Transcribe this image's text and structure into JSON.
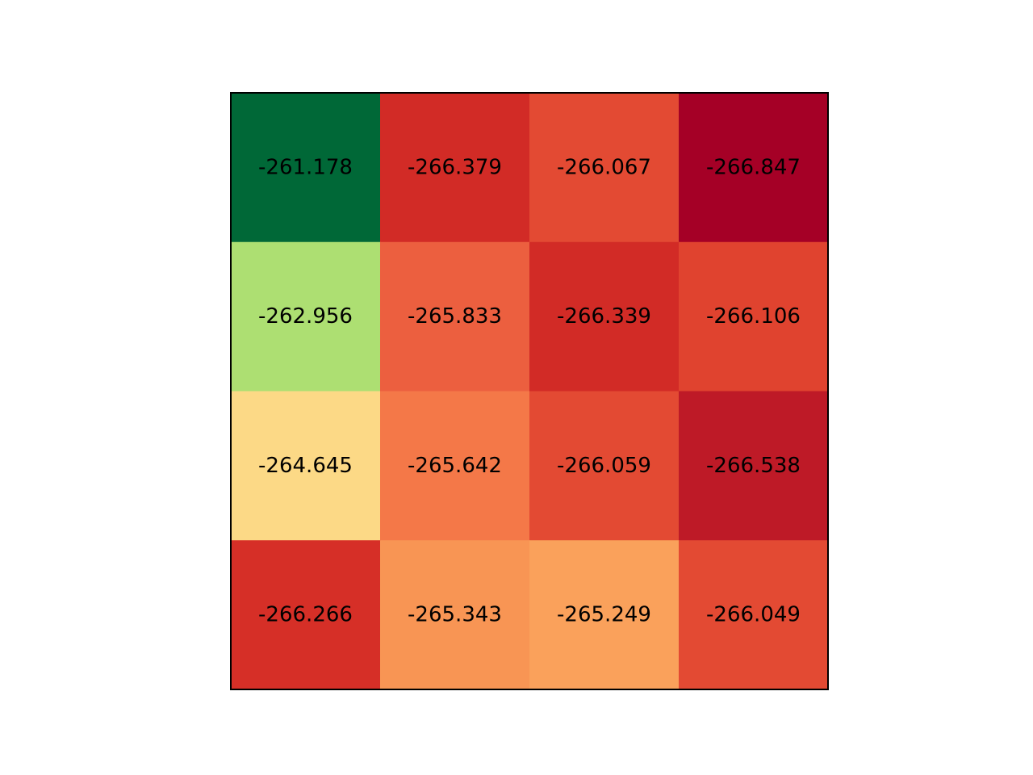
{
  "chart_data": {
    "type": "heatmap",
    "title": "",
    "xlabel": "",
    "ylabel": "",
    "rows": 4,
    "cols": 4,
    "colormap": "RdYlGn",
    "value_range": [
      -266.847,
      -261.178
    ],
    "values": [
      [
        -261.178,
        -266.379,
        -266.067,
        -266.847
      ],
      [
        -262.956,
        -265.833,
        -266.339,
        -266.106
      ],
      [
        -264.645,
        -265.642,
        -266.059,
        -266.538
      ],
      [
        -266.266,
        -265.343,
        -265.249,
        -266.049
      ]
    ],
    "labels": [
      [
        "-261.178",
        "-266.379",
        "-266.067",
        "-266.847"
      ],
      [
        "-262.956",
        "-265.833",
        "-266.339",
        "-266.106"
      ],
      [
        "-264.645",
        "-265.642",
        "-266.059",
        "-266.538"
      ],
      [
        "-266.266",
        "-265.343",
        "-265.249",
        "-266.049"
      ]
    ],
    "cell_colors": [
      [
        "#006837",
        "#d22b26",
        "#e34a33",
        "#a50026"
      ],
      [
        "#addf72",
        "#ec5f3f",
        "#d22b26",
        "#e0432f"
      ],
      [
        "#fcd986",
        "#f47848",
        "#e34a33",
        "#be1a27"
      ],
      [
        "#d62f27",
        "#f89554",
        "#faa15b",
        "#e34a33"
      ]
    ],
    "axes_visible": false,
    "grid": false,
    "legend": "none"
  }
}
